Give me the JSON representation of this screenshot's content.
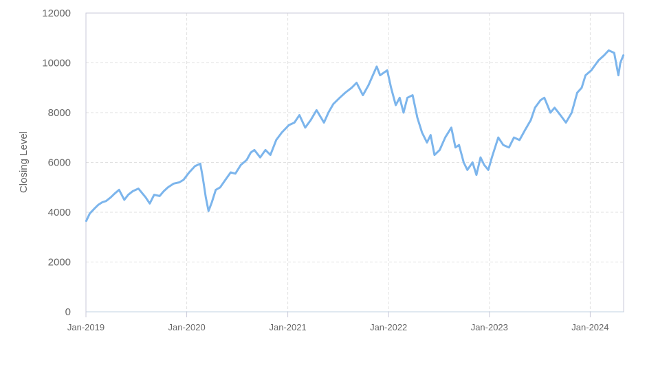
{
  "chart_data": {
    "type": "line",
    "title": "",
    "xlabel": "",
    "ylabel": "Closing Level",
    "xlim": [
      "2019-01-01",
      "2024-05-01"
    ],
    "ylim": [
      0,
      12000
    ],
    "y_ticks": [
      0,
      2000,
      4000,
      6000,
      8000,
      10000,
      12000
    ],
    "y_tick_labels": [
      "0",
      "2000",
      "4000",
      "6000",
      "8000",
      "10000",
      "12000"
    ],
    "x_ticks": [
      "2019-01-01",
      "2020-01-01",
      "2021-01-01",
      "2022-01-01",
      "2023-01-01",
      "2024-01-01"
    ],
    "x_tick_labels": [
      "Jan-2019",
      "Jan-2020",
      "Jan-2021",
      "Jan-2022",
      "Jan-2023",
      "Jan-2024"
    ],
    "grid": true,
    "line_color": "#7cb5ec",
    "grid_color": "#e0e0e0",
    "series": [
      {
        "x": [
          "2019-01-02",
          "2019-01-15",
          "2019-02-01",
          "2019-02-15",
          "2019-03-01",
          "2019-03-15",
          "2019-04-01",
          "2019-04-15",
          "2019-05-01",
          "2019-05-20",
          "2019-06-03",
          "2019-06-20",
          "2019-07-10",
          "2019-08-05",
          "2019-08-20",
          "2019-09-05",
          "2019-09-25",
          "2019-10-10",
          "2019-10-25",
          "2019-11-15",
          "2019-12-05",
          "2019-12-20",
          "2020-01-10",
          "2020-01-31",
          "2020-02-19",
          "2020-02-28",
          "2020-03-10",
          "2020-03-20",
          "2020-04-01",
          "2020-04-15",
          "2020-05-01",
          "2020-05-20",
          "2020-06-08",
          "2020-06-25",
          "2020-07-15",
          "2020-08-05",
          "2020-08-20",
          "2020-09-02",
          "2020-09-23",
          "2020-10-12",
          "2020-10-30",
          "2020-11-20",
          "2020-12-10",
          "2021-01-05",
          "2021-01-25",
          "2021-02-12",
          "2021-03-05",
          "2021-03-25",
          "2021-04-15",
          "2021-05-12",
          "2021-05-28",
          "2021-06-15",
          "2021-07-08",
          "2021-07-28",
          "2021-08-20",
          "2021-09-07",
          "2021-09-30",
          "2021-10-20",
          "2021-11-19",
          "2021-12-01",
          "2021-12-27",
          "2022-01-10",
          "2022-01-27",
          "2022-02-10",
          "2022-02-24",
          "2022-03-10",
          "2022-03-29",
          "2022-04-15",
          "2022-05-02",
          "2022-05-20",
          "2022-06-02",
          "2022-06-16",
          "2022-07-05",
          "2022-07-25",
          "2022-08-16",
          "2022-08-31",
          "2022-09-13",
          "2022-09-30",
          "2022-10-13",
          "2022-11-01",
          "2022-11-15",
          "2022-11-30",
          "2022-12-13",
          "2022-12-28",
          "2023-01-10",
          "2023-02-02",
          "2023-02-20",
          "2023-03-13",
          "2023-03-31",
          "2023-04-20",
          "2023-05-10",
          "2023-05-31",
          "2023-06-15",
          "2023-07-05",
          "2023-07-19",
          "2023-08-10",
          "2023-08-25",
          "2023-09-15",
          "2023-10-05",
          "2023-10-26",
          "2023-11-15",
          "2023-12-01",
          "2023-12-15",
          "2024-01-05",
          "2024-01-31",
          "2024-02-20",
          "2024-03-08",
          "2024-03-28",
          "2024-04-12",
          "2024-04-19",
          "2024-04-30"
        ],
        "values": [
          3650,
          3950,
          4150,
          4300,
          4400,
          4450,
          4600,
          4750,
          4900,
          4500,
          4700,
          4850,
          4950,
          4600,
          4350,
          4700,
          4650,
          4850,
          5000,
          5150,
          5200,
          5300,
          5600,
          5850,
          5950,
          5400,
          4600,
          4050,
          4400,
          4900,
          5000,
          5300,
          5600,
          5550,
          5900,
          6100,
          6400,
          6500,
          6200,
          6500,
          6300,
          6900,
          7200,
          7500,
          7600,
          7900,
          7400,
          7700,
          8100,
          7600,
          8000,
          8350,
          8600,
          8800,
          9000,
          9200,
          8700,
          9100,
          9850,
          9500,
          9700,
          9000,
          8300,
          8600,
          8000,
          8600,
          8700,
          7800,
          7200,
          6800,
          7100,
          6300,
          6500,
          7000,
          7400,
          6600,
          6700,
          6000,
          5700,
          6000,
          5500,
          6200,
          5900,
          5700,
          6200,
          7000,
          6700,
          6600,
          7000,
          6900,
          7300,
          7700,
          8200,
          8500,
          8600,
          8000,
          8200,
          7900,
          7600,
          8000,
          8800,
          9000,
          9500,
          9700,
          10100,
          10300,
          10500,
          10400,
          9500,
          10000,
          10300
        ]
      }
    ]
  }
}
